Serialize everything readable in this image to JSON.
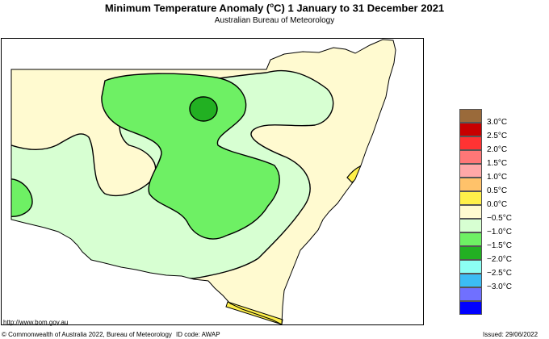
{
  "header": {
    "title": "Minimum Temperature Anomaly (",
    "title_deg": "o",
    "title_end": "C)  1 January to 31 December 2021",
    "subtitle": "Australian Bureau of Meteorology"
  },
  "legend": {
    "items": [
      {
        "color": "#9a6a3a",
        "label": ""
      },
      {
        "color": "#c80000",
        "label": "3.0°C"
      },
      {
        "color": "#ff3333",
        "label": "2.5°C"
      },
      {
        "color": "#ff7777",
        "label": "2.0°C"
      },
      {
        "color": "#ffa8a8",
        "label": "1.5°C"
      },
      {
        "color": "#ffc26a",
        "label": "1.0°C"
      },
      {
        "color": "#fff04a",
        "label": "0.5°C"
      },
      {
        "color": "#fffad0",
        "label": "0.0°C"
      },
      {
        "color": "#d7ffd2",
        "label": "−0.5°C"
      },
      {
        "color": "#6ef064",
        "label": "−1.0°C"
      },
      {
        "color": "#22b022",
        "label": "−1.5°C"
      },
      {
        "color": "#8cfff4",
        "label": "−2.0°C"
      },
      {
        "color": "#3cbcf4",
        "label": "−2.5°C"
      },
      {
        "color": "#7070ff",
        "label": "−3.0°C"
      },
      {
        "color": "#0000ff",
        "label": ""
      }
    ]
  },
  "footer": {
    "url": "http://www.bom.gov.au",
    "copyright": "© Commonwealth of Australia 2022, Bureau of Meteorology",
    "id_code": "ID code: AWAP",
    "issued": "Issued: 29/06/2022"
  }
}
